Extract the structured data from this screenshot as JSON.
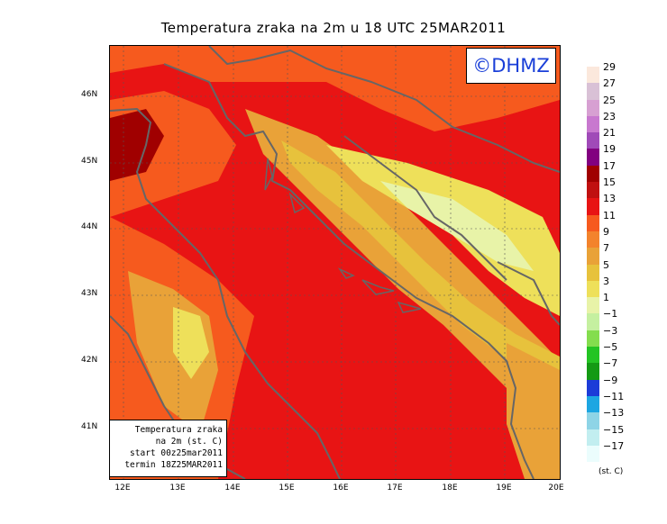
{
  "title": "Temperatura zraka na 2m u 18 UTC 25MAR2011",
  "logo": "©DHMZ",
  "info": {
    "line1": "Temperatura zraka",
    "line2": "na 2m (st. C)",
    "line3": "start 00z25mar2011",
    "line4": "termin 18Z25MAR2011"
  },
  "lat_labels": [
    "46N",
    "45N",
    "44N",
    "43N",
    "42N",
    "41N"
  ],
  "lon_labels": [
    "12E",
    "13E",
    "14E",
    "15E",
    "16E",
    "17E",
    "18E",
    "19E",
    "20E"
  ],
  "legend": {
    "unit": "(st. C)",
    "labels": [
      "29",
      "27",
      "25",
      "23",
      "21",
      "19",
      "17",
      "15",
      "13",
      "11",
      "9",
      "7",
      "5",
      "3",
      "1",
      "−1",
      "−3",
      "−5",
      "−7",
      "−9",
      "−11",
      "−13",
      "−15",
      "−17"
    ],
    "colors": [
      "#fbe8dc",
      "#d9c1d6",
      "#d7a0d2",
      "#c878cf",
      "#a04ab8",
      "#820080",
      "#a00000",
      "#c01010",
      "#e81414",
      "#f65a1e",
      "#f3832c",
      "#e9a238",
      "#e7c23c",
      "#eee05a",
      "#e8f3a8",
      "#c5f0a0",
      "#84dd4e",
      "#24c424",
      "#149a14",
      "#1c3cd8",
      "#1da6e2",
      "#8ed4e6",
      "#c2eef0",
      "#ebfdfd"
    ]
  }
}
